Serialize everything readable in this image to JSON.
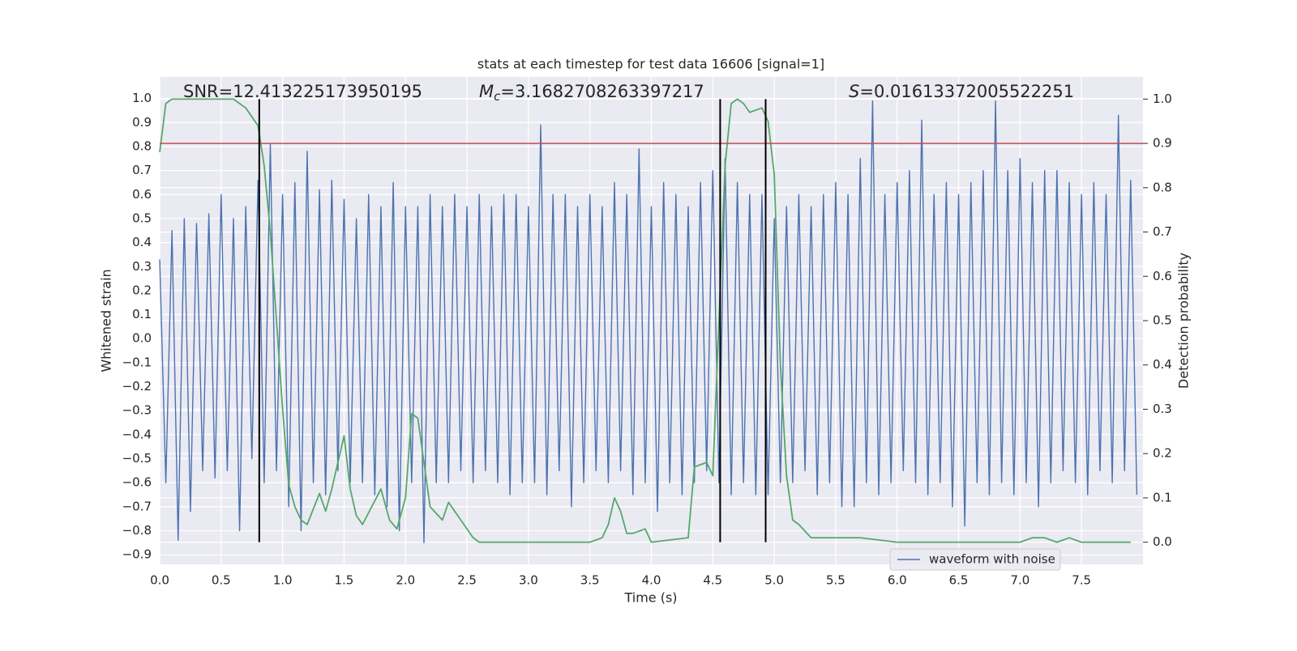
{
  "chart_data": {
    "type": "line",
    "title": "stats at each timestep for test data 16606 [signal=1]",
    "xlabel": "Time (s)",
    "ylabel": "Whitened strain",
    "y2label": "Detection probability",
    "annotations": [
      {
        "text": "SNR=12.413225173950195"
      },
      {
        "symbol": "M",
        "subscript": "c",
        "text": "=3.1682708263397217"
      },
      {
        "symbol": "S",
        "text": "=0.01613372005522251"
      }
    ],
    "xlim": [
      0,
      8.0
    ],
    "ylim": [
      -0.94,
      1.09
    ],
    "y2lim": [
      -0.05,
      1.05
    ],
    "grid": true,
    "legend": "lower right",
    "xticks": [
      {
        "value": 0,
        "label": "0.0"
      },
      {
        "value": 0.5,
        "label": "0.5"
      },
      {
        "value": 1,
        "label": "1.0"
      },
      {
        "value": 1.5,
        "label": "1.5"
      },
      {
        "value": 2,
        "label": "2.0"
      },
      {
        "value": 2.5,
        "label": "2.5"
      },
      {
        "value": 3,
        "label": "3.0"
      },
      {
        "value": 3.5,
        "label": "3.5"
      },
      {
        "value": 4,
        "label": "4.0"
      },
      {
        "value": 4.5,
        "label": "4.5"
      },
      {
        "value": 5,
        "label": "5.0"
      },
      {
        "value": 5.5,
        "label": "5.5"
      },
      {
        "value": 6,
        "label": "6.0"
      },
      {
        "value": 6.5,
        "label": "6.5"
      },
      {
        "value": 7,
        "label": "7.0"
      },
      {
        "value": 7.5,
        "label": "7.5"
      }
    ],
    "yticks": [
      {
        "value": -0.9,
        "label": "−0.9"
      },
      {
        "value": -0.8,
        "label": "−0.8"
      },
      {
        "value": -0.7,
        "label": "−0.7"
      },
      {
        "value": -0.6,
        "label": "−0.6"
      },
      {
        "value": -0.5,
        "label": "−0.5"
      },
      {
        "value": -0.4,
        "label": "−0.4"
      },
      {
        "value": -0.3,
        "label": "−0.3"
      },
      {
        "value": -0.2,
        "label": "−0.2"
      },
      {
        "value": -0.1,
        "label": "−0.1"
      },
      {
        "value": 0,
        "label": "0.0"
      },
      {
        "value": 0.1,
        "label": "0.1"
      },
      {
        "value": 0.2,
        "label": "0.2"
      },
      {
        "value": 0.3,
        "label": "0.3"
      },
      {
        "value": 0.4,
        "label": "0.4"
      },
      {
        "value": 0.5,
        "label": "0.5"
      },
      {
        "value": 0.6,
        "label": "0.6"
      },
      {
        "value": 0.7,
        "label": "0.7"
      },
      {
        "value": 0.8,
        "label": "0.8"
      },
      {
        "value": 0.9,
        "label": "0.9"
      },
      {
        "value": 1,
        "label": "1.0"
      }
    ],
    "y2ticks": [
      {
        "value": 0,
        "label": "0.0"
      },
      {
        "value": 0.1,
        "label": "0.1"
      },
      {
        "value": 0.2,
        "label": "0.2"
      },
      {
        "value": 0.3,
        "label": "0.3"
      },
      {
        "value": 0.4,
        "label": "0.4"
      },
      {
        "value": 0.5,
        "label": "0.5"
      },
      {
        "value": 0.6,
        "label": "0.6"
      },
      {
        "value": 0.7,
        "label": "0.7"
      },
      {
        "value": 0.8,
        "label": "0.8"
      },
      {
        "value": 0.9,
        "label": "0.9"
      },
      {
        "value": 1,
        "label": "1.0"
      }
    ],
    "series": [
      {
        "name": "waveform with noise",
        "color": "#4c72b0",
        "x": [
          0,
          0.05,
          0.1,
          0.15,
          0.2,
          0.25,
          0.3,
          0.35,
          0.4,
          0.45,
          0.5,
          0.55,
          0.6,
          0.65,
          0.7,
          0.75,
          0.8,
          0.85,
          0.9,
          0.95,
          1,
          1.05,
          1.1,
          1.15,
          1.2,
          1.25,
          1.3,
          1.35,
          1.4,
          1.45,
          1.5,
          1.55,
          1.6,
          1.65,
          1.7,
          1.75,
          1.8,
          1.85,
          1.9,
          1.95,
          2,
          2.05,
          2.1,
          2.15,
          2.2,
          2.25,
          2.3,
          2.35,
          2.4,
          2.45,
          2.5,
          2.55,
          2.6,
          2.65,
          2.7,
          2.75,
          2.8,
          2.85,
          2.9,
          2.95,
          3,
          3.05,
          3.1,
          3.15,
          3.2,
          3.25,
          3.3,
          3.35,
          3.4,
          3.45,
          3.5,
          3.55,
          3.6,
          3.65,
          3.7,
          3.75,
          3.8,
          3.85,
          3.9,
          3.95,
          4,
          4.05,
          4.1,
          4.15,
          4.2,
          4.25,
          4.3,
          4.35,
          4.4,
          4.45,
          4.5,
          4.55,
          4.6,
          4.65,
          4.7,
          4.75,
          4.8,
          4.85,
          4.9,
          4.95,
          5,
          5.05,
          5.1,
          5.15,
          5.2,
          5.25,
          5.3,
          5.35,
          5.4,
          5.45,
          5.5,
          5.55,
          5.6,
          5.65,
          5.7,
          5.75,
          5.8,
          5.85,
          5.9,
          5.95,
          6,
          6.05,
          6.1,
          6.15,
          6.2,
          6.25,
          6.3,
          6.35,
          6.4,
          6.45,
          6.5,
          6.55,
          6.6,
          6.65,
          6.7,
          6.75,
          6.8,
          6.85,
          6.9,
          6.95,
          7,
          7.05,
          7.1,
          7.15,
          7.2,
          7.25,
          7.3,
          7.35,
          7.4,
          7.45,
          7.5,
          7.55,
          7.6,
          7.65,
          7.7,
          7.75,
          7.8,
          7.85,
          7.9,
          7.95
        ],
        "values": [
          0.33,
          -0.6,
          0.45,
          -0.84,
          0.5,
          -0.72,
          0.48,
          -0.55,
          0.52,
          -0.58,
          0.6,
          -0.55,
          0.5,
          -0.8,
          0.55,
          -0.5,
          0.66,
          -0.6,
          0.81,
          -0.55,
          0.6,
          -0.7,
          0.65,
          -0.8,
          0.78,
          -0.6,
          0.62,
          -0.65,
          0.66,
          -0.55,
          0.58,
          -0.6,
          0.5,
          -0.6,
          0.6,
          -0.65,
          0.55,
          -0.7,
          0.65,
          -0.8,
          0.55,
          -0.6,
          0.55,
          -0.85,
          0.6,
          -0.6,
          0.55,
          -0.6,
          0.6,
          -0.55,
          0.55,
          -0.6,
          0.6,
          -0.55,
          0.55,
          -0.6,
          0.6,
          -0.65,
          0.6,
          -0.6,
          0.55,
          -0.6,
          0.89,
          -0.65,
          0.6,
          -0.55,
          0.6,
          -0.7,
          0.55,
          -0.6,
          0.6,
          -0.55,
          0.55,
          -0.6,
          0.65,
          -0.55,
          0.6,
          -0.65,
          0.79,
          -0.6,
          0.55,
          -0.72,
          0.65,
          -0.6,
          0.6,
          -0.65,
          0.55,
          -0.6,
          0.65,
          -0.55,
          0.7,
          -0.6,
          0.75,
          -0.65,
          0.65,
          -0.6,
          0.6,
          -0.65,
          0.6,
          -0.65,
          0.5,
          -0.6,
          0.55,
          -0.6,
          0.6,
          -0.55,
          0.55,
          -0.65,
          0.6,
          -0.6,
          0.65,
          -0.7,
          0.6,
          -0.7,
          0.75,
          -0.6,
          0.99,
          -0.65,
          0.6,
          -0.6,
          0.65,
          -0.55,
          0.7,
          -0.6,
          0.91,
          -0.65,
          0.6,
          -0.6,
          0.65,
          -0.7,
          0.6,
          -0.78,
          0.65,
          -0.6,
          0.7,
          -0.65,
          0.99,
          -0.6,
          0.7,
          -0.65,
          0.75,
          -0.6,
          0.65,
          -0.7,
          0.7,
          -0.6,
          0.7,
          -0.55,
          0.65,
          -0.6,
          0.6,
          -0.65,
          0.65,
          -0.55,
          0.6,
          -0.6,
          0.93,
          -0.55,
          0.66,
          -0.65
        ]
      },
      {
        "color": "#55a868",
        "axis": "y2",
        "x": [
          0,
          0.05,
          0.1,
          0.6,
          0.7,
          0.8,
          0.85,
          0.9,
          0.95,
          1,
          1.05,
          1.1,
          1.15,
          1.2,
          1.3,
          1.35,
          1.4,
          1.5,
          1.55,
          1.6,
          1.65,
          1.8,
          1.87,
          1.93,
          2,
          2.05,
          2.1,
          2.15,
          2.2,
          2.3,
          2.35,
          2.45,
          2.55,
          2.6,
          2.8,
          3,
          3.5,
          3.6,
          3.65,
          3.7,
          3.75,
          3.8,
          3.85,
          3.95,
          4,
          4.3,
          4.35,
          4.45,
          4.5,
          4.55,
          4.6,
          4.65,
          4.7,
          4.75,
          4.8,
          4.9,
          4.95,
          5,
          5.05,
          5.1,
          5.15,
          5.2,
          5.3,
          5.5,
          5.7,
          6,
          7,
          7.1,
          7.2,
          7.3,
          7.4,
          7.5,
          7.9
        ],
        "values": [
          0.88,
          0.99,
          1,
          1,
          0.98,
          0.94,
          0.85,
          0.7,
          0.5,
          0.3,
          0.13,
          0.08,
          0.05,
          0.04,
          0.11,
          0.07,
          0.12,
          0.24,
          0.12,
          0.06,
          0.04,
          0.12,
          0.05,
          0.03,
          0.1,
          0.29,
          0.28,
          0.18,
          0.08,
          0.05,
          0.09,
          0.05,
          0.01,
          0,
          0,
          0,
          0,
          0.01,
          0.04,
          0.1,
          0.07,
          0.02,
          0.02,
          0.03,
          0,
          0.01,
          0.17,
          0.18,
          0.15,
          0.5,
          0.85,
          0.99,
          1,
          0.99,
          0.97,
          0.98,
          0.95,
          0.83,
          0.4,
          0.15,
          0.05,
          0.04,
          0.01,
          0.01,
          0.01,
          0,
          0,
          0.01,
          0.01,
          0,
          0.01,
          0,
          0
        ]
      }
    ],
    "hlines": [
      {
        "value": 0.9,
        "axis": "y2",
        "color": "#c44e52"
      }
    ],
    "vlines": {
      "x": [
        0.81,
        4.56,
        4.93
      ],
      "ymin": 0,
      "ymax": 1,
      "axis": "y2",
      "color": "#000000"
    }
  }
}
